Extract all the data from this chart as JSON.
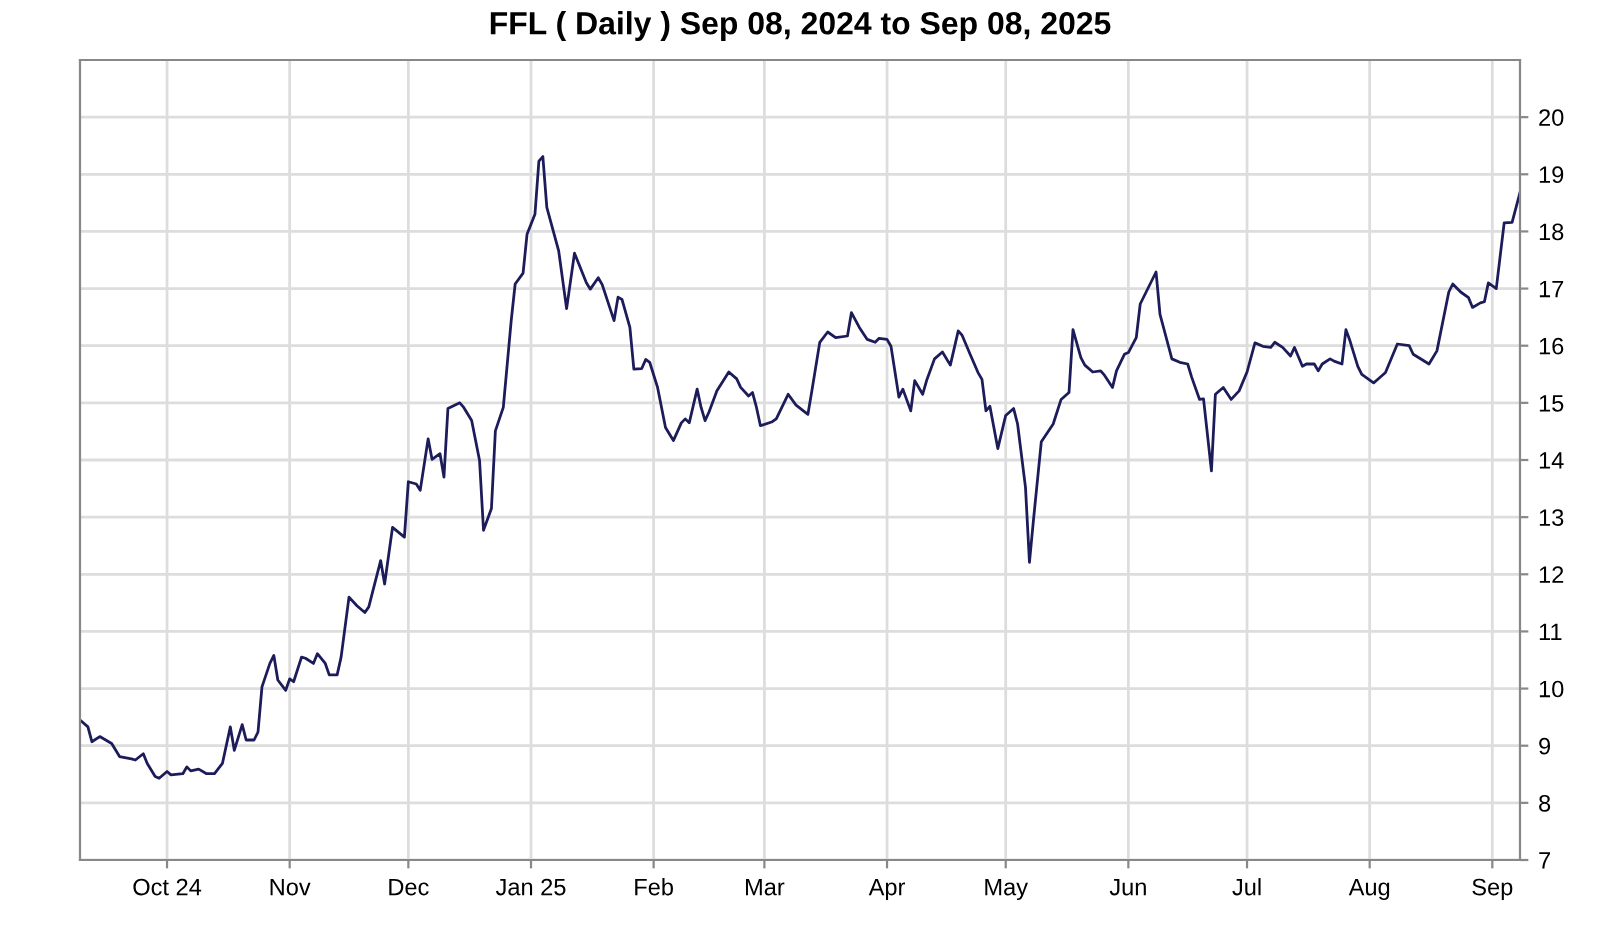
{
  "chart_data": {
    "type": "line",
    "title": "FFL ( Daily ) Sep 08, 2024 to Sep 08, 2025",
    "xlim": [
      "2024-09-09",
      "2025-09-08"
    ],
    "ylim": [
      7,
      21
    ],
    "xticks": [
      {
        "value": "2024-10-01",
        "label": "Oct 24"
      },
      {
        "value": "2024-11-01",
        "label": "Nov"
      },
      {
        "value": "2024-12-01",
        "label": "Dec"
      },
      {
        "value": "2025-01-01",
        "label": "Jan 25"
      },
      {
        "value": "2025-02-01",
        "label": "Feb"
      },
      {
        "value": "2025-03-01",
        "label": "Mar"
      },
      {
        "value": "2025-04-01",
        "label": "Apr"
      },
      {
        "value": "2025-05-01",
        "label": "May"
      },
      {
        "value": "2025-06-01",
        "label": "Jun"
      },
      {
        "value": "2025-07-01",
        "label": "Jul"
      },
      {
        "value": "2025-08-01",
        "label": "Aug"
      },
      {
        "value": "2025-09-01",
        "label": "Sep"
      }
    ],
    "yticks": [
      7,
      8,
      9,
      10,
      11,
      12,
      13,
      14,
      15,
      16,
      17,
      18,
      19,
      20
    ],
    "grid": true,
    "marker": "none",
    "line_style": "solid",
    "series": [
      {
        "color": "#1c1c5a",
        "x": [
          "2024-09-09",
          "2024-09-11",
          "2024-09-12",
          "2024-09-14",
          "2024-09-17",
          "2024-09-19",
          "2024-09-22",
          "2024-09-23",
          "2024-09-25",
          "2024-09-26",
          "2024-09-28",
          "2024-09-29",
          "2024-10-01",
          "2024-10-02",
          "2024-10-05",
          "2024-10-06",
          "2024-10-07",
          "2024-10-09",
          "2024-10-11",
          "2024-10-13",
          "2024-10-15",
          "2024-10-17",
          "2024-10-18",
          "2024-10-20",
          "2024-10-21",
          "2024-10-23",
          "2024-10-24",
          "2024-10-25",
          "2024-10-27",
          "2024-10-28",
          "2024-10-29",
          "2024-10-31",
          "2024-11-01",
          "2024-11-02",
          "2024-11-04",
          "2024-11-05",
          "2024-11-07",
          "2024-11-08",
          "2024-11-10",
          "2024-11-11",
          "2024-11-13",
          "2024-11-14",
          "2024-11-16",
          "2024-11-18",
          "2024-11-20",
          "2024-11-21",
          "2024-11-22",
          "2024-11-24",
          "2024-11-25",
          "2024-11-27",
          "2024-11-30",
          "2024-12-01",
          "2024-12-03",
          "2024-12-04",
          "2024-12-06",
          "2024-12-07",
          "2024-12-09",
          "2024-12-10",
          "2024-12-11",
          "2024-12-14",
          "2024-12-15",
          "2024-12-17",
          "2024-12-19",
          "2024-12-20",
          "2024-12-22",
          "2024-12-23",
          "2024-12-25",
          "2024-12-27",
          "2024-12-28",
          "2024-12-30",
          "2024-12-31",
          "2025-01-02",
          "2025-01-03",
          "2025-01-04",
          "2025-01-05",
          "2025-01-08",
          "2025-01-10",
          "2025-01-12",
          "2025-01-15",
          "2025-01-16",
          "2025-01-18",
          "2025-01-19",
          "2025-01-22",
          "2025-01-23",
          "2025-01-24",
          "2025-01-26",
          "2025-01-27",
          "2025-01-29",
          "2025-01-30",
          "2025-01-31",
          "2025-02-02",
          "2025-02-04",
          "2025-02-06",
          "2025-02-08",
          "2025-02-09",
          "2025-02-10",
          "2025-02-12",
          "2025-02-13",
          "2025-02-14",
          "2025-02-15",
          "2025-02-17",
          "2025-02-20",
          "2025-02-22",
          "2025-02-23",
          "2025-02-25",
          "2025-02-26",
          "2025-02-27",
          "2025-02-28",
          "2025-03-03",
          "2025-03-04",
          "2025-03-07",
          "2025-03-09",
          "2025-03-12",
          "2025-03-13",
          "2025-03-15",
          "2025-03-17",
          "2025-03-19",
          "2025-03-22",
          "2025-03-23",
          "2025-03-25",
          "2025-03-27",
          "2025-03-29",
          "2025-03-30",
          "2025-04-01",
          "2025-04-02",
          "2025-04-04",
          "2025-04-05",
          "2025-04-07",
          "2025-04-08",
          "2025-04-10",
          "2025-04-11",
          "2025-04-13",
          "2025-04-15",
          "2025-04-17",
          "2025-04-19",
          "2025-04-20",
          "2025-04-22",
          "2025-04-24",
          "2025-04-25",
          "2025-04-26",
          "2025-04-27",
          "2025-04-29",
          "2025-05-01",
          "2025-05-03",
          "2025-05-04",
          "2025-05-06",
          "2025-05-07",
          "2025-05-08",
          "2025-05-10",
          "2025-05-13",
          "2025-05-15",
          "2025-05-17",
          "2025-05-18",
          "2025-05-20",
          "2025-05-21",
          "2025-05-23",
          "2025-05-25",
          "2025-05-26",
          "2025-05-28",
          "2025-05-29",
          "2025-05-31",
          "2025-06-01",
          "2025-06-03",
          "2025-06-04",
          "2025-06-08",
          "2025-06-09",
          "2025-06-11",
          "2025-06-12",
          "2025-06-14",
          "2025-06-16",
          "2025-06-17",
          "2025-06-19",
          "2025-06-20",
          "2025-06-22",
          "2025-06-23",
          "2025-06-25",
          "2025-06-27",
          "2025-06-29",
          "2025-07-01",
          "2025-07-03",
          "2025-07-05",
          "2025-07-07",
          "2025-07-08",
          "2025-07-10",
          "2025-07-12",
          "2025-07-13",
          "2025-07-15",
          "2025-07-16",
          "2025-07-18",
          "2025-07-19",
          "2025-07-20",
          "2025-07-22",
          "2025-07-23",
          "2025-07-25",
          "2025-07-26",
          "2025-07-27",
          "2025-07-29",
          "2025-07-30",
          "2025-08-02",
          "2025-08-03",
          "2025-08-05",
          "2025-08-08",
          "2025-08-11",
          "2025-08-12",
          "2025-08-16",
          "2025-08-18",
          "2025-08-21",
          "2025-08-22",
          "2025-08-24",
          "2025-08-26",
          "2025-08-27",
          "2025-08-29",
          "2025-08-30",
          "2025-08-31",
          "2025-09-02",
          "2025-09-04",
          "2025-09-06",
          "2025-09-08"
        ],
        "values": [
          9.45,
          9.33,
          9.07,
          9.16,
          9.04,
          8.81,
          8.77,
          8.75,
          8.86,
          8.69,
          8.46,
          8.43,
          8.55,
          8.49,
          8.51,
          8.63,
          8.56,
          8.59,
          8.51,
          8.51,
          8.69,
          9.33,
          8.92,
          9.37,
          9.1,
          9.1,
          9.24,
          10.03,
          10.44,
          10.58,
          10.15,
          9.97,
          10.17,
          10.12,
          10.55,
          10.53,
          10.44,
          10.61,
          10.44,
          10.24,
          10.24,
          10.55,
          11.6,
          11.45,
          11.33,
          11.43,
          11.7,
          12.24,
          11.83,
          12.82,
          12.65,
          13.62,
          13.58,
          13.47,
          14.37,
          14.01,
          14.11,
          13.7,
          14.9,
          15.0,
          14.92,
          14.69,
          13.99,
          12.77,
          13.15,
          14.51,
          14.92,
          16.44,
          17.08,
          17.27,
          17.95,
          18.3,
          19.23,
          19.31,
          18.42,
          17.66,
          16.65,
          17.62,
          17.1,
          16.99,
          17.19,
          17.07,
          16.44,
          16.85,
          16.81,
          16.32,
          15.59,
          15.6,
          15.76,
          15.71,
          15.27,
          14.57,
          14.34,
          14.65,
          14.72,
          14.65,
          15.24,
          14.92,
          14.69,
          14.84,
          15.21,
          15.54,
          15.42,
          15.27,
          15.12,
          15.18,
          14.92,
          14.6,
          14.67,
          14.72,
          15.15,
          14.96,
          14.8,
          15.21,
          16.06,
          16.24,
          16.14,
          16.17,
          16.58,
          16.32,
          16.11,
          16.06,
          16.13,
          16.11,
          15.99,
          15.1,
          15.24,
          14.86,
          15.39,
          15.15,
          15.39,
          15.77,
          15.89,
          15.66,
          16.26,
          16.18,
          15.85,
          15.53,
          15.41,
          14.86,
          14.94,
          14.2,
          14.78,
          14.9,
          14.63,
          13.52,
          12.21,
          12.94,
          14.32,
          14.63,
          15.06,
          15.18,
          16.28,
          15.79,
          15.66,
          15.54,
          15.56,
          15.48,
          15.27,
          15.56,
          15.85,
          15.88,
          16.14,
          16.73,
          17.29,
          16.55,
          16.03,
          15.77,
          15.71,
          15.68,
          15.45,
          15.06,
          15.07,
          13.81,
          15.15,
          15.27,
          15.06,
          15.21,
          15.54,
          16.05,
          15.99,
          15.97,
          16.06,
          15.97,
          15.82,
          15.97,
          15.64,
          15.68,
          15.68,
          15.56,
          15.68,
          15.77,
          15.73,
          15.68,
          16.28,
          16.09,
          15.64,
          15.5,
          15.35,
          15.41,
          15.53,
          16.03,
          16.0,
          15.85,
          15.68,
          15.91,
          16.94,
          17.08,
          16.94,
          16.84,
          16.67,
          16.75,
          16.77,
          17.1,
          17.0,
          18.15,
          18.16,
          18.68
        ]
      }
    ]
  }
}
